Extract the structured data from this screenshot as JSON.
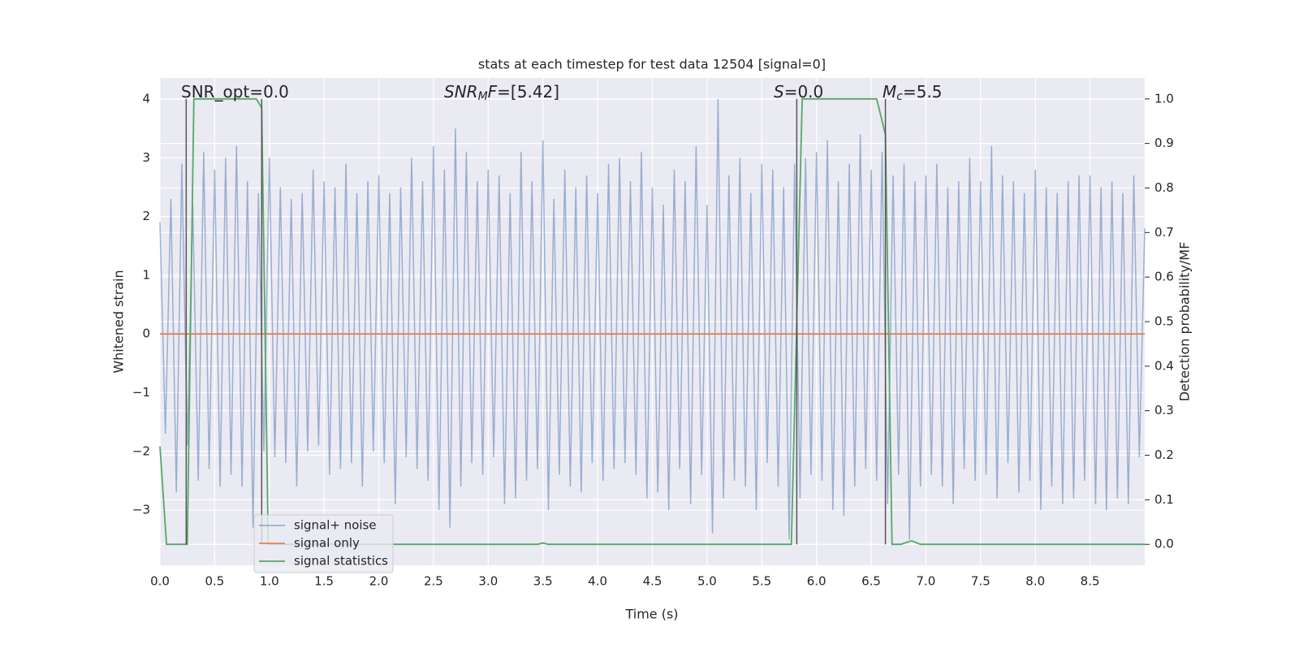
{
  "chart_data": {
    "type": "line",
    "title": "stats at each timestep for test data 12504 [signal=0]",
    "xlabel": "Time (s)",
    "ylabel": "Whitened strain",
    "y2label": "Detection probability/MF",
    "xlim": [
      0,
      9.0
    ],
    "ylim": [
      -3.94,
      4.36
    ],
    "y2lim": [
      -0.047,
      1.047
    ],
    "grid": true,
    "legend": "lower left",
    "xticks": [
      {
        "value": 0,
        "label": "0.0"
      },
      0.5,
      {
        "value": 1,
        "label": "1.0"
      },
      1.5,
      {
        "value": 2,
        "label": "2.0"
      },
      2.5,
      {
        "value": 3,
        "label": "3.0"
      },
      3.5,
      {
        "value": 4,
        "label": "4.0"
      },
      4.5,
      {
        "value": 5,
        "label": "5.0"
      },
      5.5,
      {
        "value": 6,
        "label": "6.0"
      },
      6.5,
      {
        "value": 7,
        "label": "7.0"
      },
      7.5,
      {
        "value": 8,
        "label": "8.0"
      },
      8.5
    ],
    "yticks": [
      {
        "value": -3,
        "label": "−3"
      },
      {
        "value": -2,
        "label": "−2"
      },
      {
        "value": -1,
        "label": "−1"
      },
      0,
      1,
      2,
      3,
      4
    ],
    "y2ticks": [
      {
        "value": 0,
        "label": "0.0"
      },
      0.1,
      0.2,
      0.3,
      0.4,
      0.5,
      0.6,
      0.7,
      0.8,
      0.9,
      {
        "value": 1,
        "label": "1.0"
      }
    ],
    "vlines": {
      "color": "#555555",
      "x": [
        0.24,
        0.93,
        5.82,
        6.63
      ]
    },
    "annotations": [
      [
        {
          "text": "SNR_opt=0.0"
        }
      ],
      [
        {
          "text": "SNR",
          "italic": true
        },
        {
          "text": "M",
          "italic": true,
          "sub": true
        },
        {
          "text": "F",
          "italic": true
        },
        {
          "text": "=[5.42]"
        }
      ],
      [
        {
          "text": "S",
          "italic": true
        },
        {
          "text": "=0.0"
        }
      ],
      [
        {
          "text": "M",
          "italic": true
        },
        {
          "text": "c",
          "italic": true,
          "sub": true
        },
        {
          "text": "=5.5"
        }
      ]
    ],
    "series": [
      {
        "name": "signal+ noise",
        "color": "#4c72b0",
        "x": [
          0,
          0.05,
          0.1,
          0.15,
          0.2,
          0.25,
          0.3,
          0.35,
          0.4,
          0.45,
          0.5,
          0.55,
          0.6,
          0.65,
          0.7,
          0.75,
          0.8,
          0.85,
          0.9,
          0.95,
          1,
          1.05,
          1.1,
          1.15,
          1.2,
          1.25,
          1.3,
          1.35,
          1.4,
          1.45,
          1.5,
          1.55,
          1.6,
          1.65,
          1.7,
          1.75,
          1.8,
          1.85,
          1.9,
          1.95,
          2,
          2.05,
          2.1,
          2.15,
          2.2,
          2.25,
          2.3,
          2.35,
          2.4,
          2.45,
          2.5,
          2.55,
          2.6,
          2.65,
          2.7,
          2.75,
          2.8,
          2.85,
          2.9,
          2.95,
          3,
          3.05,
          3.1,
          3.15,
          3.2,
          3.25,
          3.3,
          3.35,
          3.4,
          3.45,
          3.5,
          3.55,
          3.6,
          3.65,
          3.7,
          3.75,
          3.8,
          3.85,
          3.9,
          3.95,
          4,
          4.05,
          4.1,
          4.15,
          4.2,
          4.25,
          4.3,
          4.35,
          4.4,
          4.45,
          4.5,
          4.55,
          4.6,
          4.65,
          4.7,
          4.75,
          4.8,
          4.85,
          4.9,
          4.95,
          5,
          5.05,
          5.1,
          5.15,
          5.2,
          5.25,
          5.3,
          5.35,
          5.4,
          5.45,
          5.5,
          5.55,
          5.6,
          5.65,
          5.7,
          5.75,
          5.8,
          5.85,
          5.9,
          5.95,
          6,
          6.05,
          6.1,
          6.15,
          6.2,
          6.25,
          6.3,
          6.35,
          6.4,
          6.45,
          6.5,
          6.55,
          6.6,
          6.65,
          6.7,
          6.75,
          6.8,
          6.85,
          6.9,
          6.95,
          7,
          7.05,
          7.1,
          7.15,
          7.2,
          7.25,
          7.3,
          7.35,
          7.4,
          7.45,
          7.5,
          7.55,
          7.6,
          7.65,
          7.7,
          7.75,
          7.8,
          7.85,
          7.9,
          7.95,
          8,
          8.05,
          8.1,
          8.15,
          8.2,
          8.25,
          8.3,
          8.35,
          8.4,
          8.45,
          8.5,
          8.55,
          8.6,
          8.65,
          8.7,
          8.75,
          8.8,
          8.85,
          8.9,
          8.95,
          9
        ],
        "values": [
          1.9,
          -1.7,
          2.3,
          -2.7,
          2.9,
          -1.9,
          2.2,
          -2.5,
          3.1,
          -2.3,
          2.8,
          -2.6,
          3.0,
          -2.4,
          3.2,
          -2.6,
          2.6,
          -3.3,
          2.4,
          -2.0,
          3.0,
          -2.1,
          2.5,
          -2.2,
          2.3,
          -2.6,
          2.4,
          -2.0,
          2.8,
          -1.9,
          2.6,
          -2.4,
          2.5,
          -2.3,
          2.9,
          -2.2,
          2.4,
          -2.6,
          2.6,
          -2.0,
          2.7,
          -2.2,
          2.4,
          -2.9,
          2.5,
          -2.1,
          3.0,
          -2.3,
          2.6,
          -2.5,
          3.2,
          -3.0,
          2.8,
          -3.3,
          3.5,
          -2.6,
          3.1,
          -2.2,
          2.6,
          -2.4,
          2.8,
          -2.1,
          2.7,
          -2.9,
          2.4,
          -2.8,
          3.1,
          -2.5,
          2.6,
          -2.3,
          3.3,
          -3.0,
          2.3,
          -2.4,
          2.8,
          -2.6,
          2.5,
          -2.7,
          2.7,
          -2.2,
          2.4,
          -2.5,
          2.9,
          -2.3,
          3.0,
          -2.2,
          2.6,
          -2.4,
          3.1,
          -2.8,
          2.5,
          -2.7,
          2.2,
          -3.0,
          2.8,
          -2.3,
          2.6,
          -2.9,
          3.2,
          -2.4,
          2.2,
          -3.4,
          4.0,
          -2.8,
          2.7,
          -2.5,
          3.0,
          -2.6,
          2.4,
          -3.0,
          2.9,
          -2.2,
          2.8,
          -2.6,
          2.5,
          -3.5,
          2.9,
          -2.8,
          3.0,
          -2.4,
          3.1,
          -2.5,
          3.3,
          -3.0,
          2.6,
          -3.1,
          2.9,
          -2.6,
          3.4,
          -2.3,
          2.8,
          -2.5,
          3.1,
          -2.9,
          2.7,
          -2.4,
          2.9,
          -3.5,
          2.6,
          -2.6,
          2.7,
          -2.4,
          2.9,
          -2.6,
          2.5,
          -2.9,
          2.6,
          -2.3,
          3.0,
          -2.5,
          2.6,
          -2.4,
          3.2,
          -2.8,
          2.7,
          -2.2,
          2.6,
          -2.7,
          2.4,
          -2.5,
          2.8,
          -3.0,
          2.5,
          -2.6,
          2.4,
          -2.9,
          2.6,
          -2.8,
          2.7,
          -2.5,
          2.7,
          -2.9,
          2.5,
          -3.0,
          2.6,
          -2.8,
          2.4,
          -2.9,
          2.7,
          -2.1,
          1.8
        ]
      },
      {
        "name": "signal only",
        "color": "#dd8452",
        "x": [
          0,
          9.0
        ],
        "values": [
          0,
          0
        ]
      },
      {
        "name": "signal statistics",
        "color": "#55a868",
        "axis": "y2",
        "x": [
          0,
          0.06,
          0.25,
          0.31,
          0.88,
          0.93,
          0.99,
          3.45,
          3.5,
          3.55,
          5.77,
          5.87,
          6.55,
          6.63,
          6.69,
          6.77,
          6.87,
          6.95,
          9.0
        ],
        "values": [
          0.22,
          0,
          0,
          1.0,
          1.0,
          0.98,
          0,
          0,
          0.003,
          0,
          0,
          1.0,
          1.0,
          0.92,
          0,
          0,
          0.008,
          0,
          0
        ]
      }
    ]
  }
}
